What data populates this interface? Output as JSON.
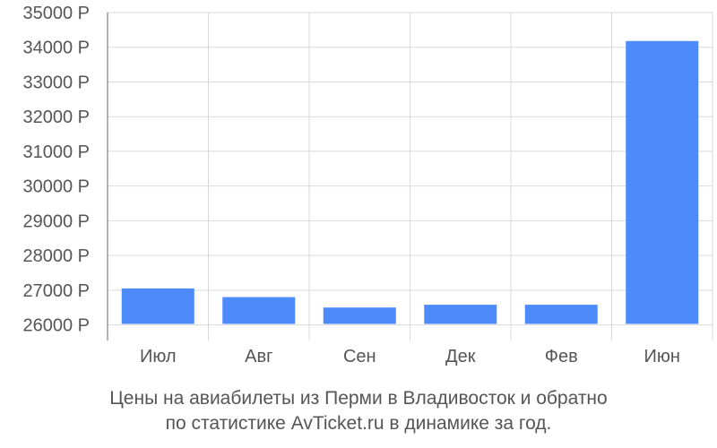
{
  "chart_data": {
    "type": "bar",
    "categories": [
      "Июл",
      "Авг",
      "Сен",
      "Дек",
      "Фев",
      "Июн"
    ],
    "values": [
      27050,
      26800,
      26500,
      26580,
      26580,
      34180
    ],
    "ylim": [
      25550,
      35000
    ],
    "yticks": [
      26000,
      27000,
      28000,
      29000,
      30000,
      31000,
      32000,
      33000,
      34000,
      35000
    ],
    "ytick_labels": [
      "26000 Р",
      "27000 Р",
      "28000 Р",
      "29000 Р",
      "30000 Р",
      "31000 Р",
      "32000 Р",
      "33000 Р",
      "34000 Р",
      "35000 Р"
    ],
    "grid": true,
    "bar_color": "#4d8afa",
    "grid_color": "#d9d9d9"
  },
  "caption": {
    "line1": "Цены на авиабилеты из Перми в Владивосток и обратно",
    "line2": "по статистике AvTicket.ru в динамике за год."
  }
}
